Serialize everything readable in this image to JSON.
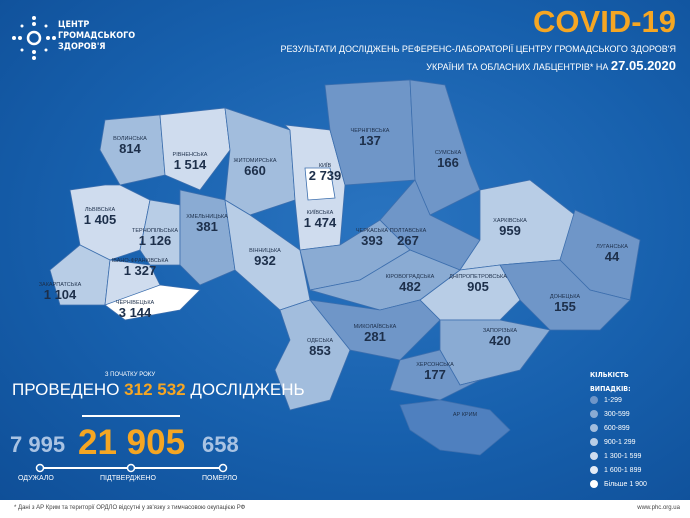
{
  "header": {
    "logo_lines": [
      "ЦЕНТР",
      "ГРОМАДСЬКОГО",
      "ЗДОРОВ'Я"
    ],
    "title": "COVID-19",
    "subtitle1": "РЕЗУЛЬТАТИ ДОСЛІДЖЕНЬ РЕФЕРЕНС-ЛАБОРАТОРІЇ ЦЕНТРУ ГРОМАДСЬКОГО ЗДОРОВ'Я",
    "subtitle2": "УКРАЇНИ ТА ОБЛАСНИХ ЛАБЦЕНТРІВ* НА",
    "date": "27.05.2020"
  },
  "regions": [
    {
      "id": "volyn",
      "name": "ВОЛИНСЬКА",
      "value": "814"
    },
    {
      "id": "rivne",
      "name": "РІВНЕНСЬКА",
      "value": "1 514"
    },
    {
      "id": "zhytomyr",
      "name": "ЖИТОМИРСЬКА",
      "value": "660"
    },
    {
      "id": "kyivcity",
      "name": "КИЇВ",
      "value": "2 739"
    },
    {
      "id": "chernihiv",
      "name": "ЧЕРНІГІВСЬКА",
      "value": "137"
    },
    {
      "id": "sumy",
      "name": "СУМСЬКА",
      "value": "166"
    },
    {
      "id": "lviv",
      "name": "ЛЬВІВСЬКА",
      "value": "1 405"
    },
    {
      "id": "ternopil",
      "name": "ТЕРНОПІЛЬСЬКА",
      "value": "1 126"
    },
    {
      "id": "khmelnytskyi",
      "name": "ХМЕЛЬНИЦЬКА",
      "value": "381"
    },
    {
      "id": "kyiv",
      "name": "КИЇВСЬКА",
      "value": "1 474"
    },
    {
      "id": "poltava",
      "name": "ПОЛТАВСЬКА",
      "value": "267"
    },
    {
      "id": "kharkiv",
      "name": "ХАРКІВСЬКА",
      "value": "959"
    },
    {
      "id": "luhansk",
      "name": "ЛУГАНСЬКА",
      "value": "44"
    },
    {
      "id": "zakarpattia",
      "name": "ЗАКАРПАТСЬКА",
      "value": "1 104"
    },
    {
      "id": "ivanofrankivsk",
      "name": "ІВАНО-ФРАНКІВСЬКА",
      "value": "1 327"
    },
    {
      "id": "chernivtsi",
      "name": "ЧЕРНІВЕЦЬКА",
      "value": "3 144"
    },
    {
      "id": "vinnytsia",
      "name": "ВІННИЦЬКА",
      "value": "932"
    },
    {
      "id": "cherkasy",
      "name": "ЧЕРКАСЬКА",
      "value": "393"
    },
    {
      "id": "kirovohrad",
      "name": "КІРОВОГРАДСЬКА",
      "value": "482"
    },
    {
      "id": "dnipro",
      "name": "ДНІПРОПЕТРОВСЬКА",
      "value": "905"
    },
    {
      "id": "donetsk",
      "name": "ДОНЕЦЬКА",
      "value": "155"
    },
    {
      "id": "odesa",
      "name": "ОДЕСЬКА",
      "value": "853"
    },
    {
      "id": "mykolaiv",
      "name": "МИКОЛАЇВСЬКА",
      "value": "281"
    },
    {
      "id": "zaporizhzhia",
      "name": "ЗАПОРІЗЬКА",
      "value": "420"
    },
    {
      "id": "kherson",
      "name": "ХЕРСОНСЬКА",
      "value": "177"
    },
    {
      "id": "crimea",
      "name": "АР КРИМ",
      "value": ""
    }
  ],
  "summary": {
    "since": "З ПОЧАТКУ РОКУ",
    "tested_prefix": "ПРОВЕДЕНО",
    "tested": "312 532",
    "tested_suffix": "ДОСЛІДЖЕНЬ",
    "recovered": "7 995",
    "confirmed": "21 905",
    "deaths": "658",
    "recovered_label": "ОДУЖАЛО",
    "confirmed_label": "ПІДТВЕРДЖЕНО",
    "deaths_label": "ПОМЕРЛО"
  },
  "legend": {
    "title1": "КІЛЬКІСТЬ",
    "title2": "ВИПАДКІВ:",
    "items": [
      {
        "label": "1-299",
        "color": "#6f96c8"
      },
      {
        "label": "300-599",
        "color": "#8aabd3"
      },
      {
        "label": "600-899",
        "color": "#a2bddd"
      },
      {
        "label": "900-1 299",
        "color": "#b8cde6"
      },
      {
        "label": "1 300-1 599",
        "color": "#cfdcee"
      },
      {
        "label": "1 600-1 899",
        "color": "#e3ebf6"
      },
      {
        "label": "Більше 1 900",
        "color": "#ffffff"
      }
    ]
  },
  "colors": {
    "accent": "#f5a623",
    "nodata": "#4f80bf",
    "recovered": "#a9c3e3"
  },
  "footer": {
    "note": "* Дані з АР Крим та території ОРДЛО відсутні у зв'язку з тимчасовою окупацією РФ",
    "url": "www.phc.org.ua"
  }
}
